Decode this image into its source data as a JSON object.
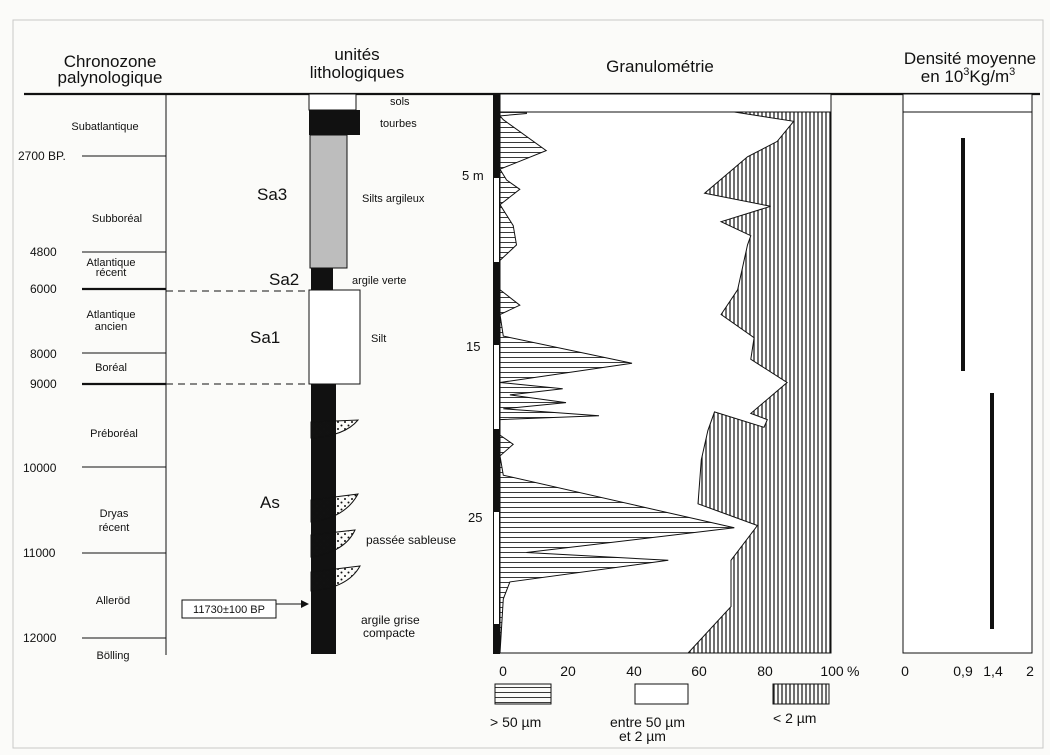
{
  "headers": {
    "chronozone": [
      "Chronozone",
      "palynologique"
    ],
    "lithology": [
      "unités",
      "lithologiques"
    ],
    "granulometry": "Granulométrie",
    "density_line1": "Densité moyenne",
    "density_line2_prefix": "en 10",
    "density_line2_sup1": "3",
    "density_line2_mid": "Kg/m",
    "density_line2_sup2": "3"
  },
  "chronozones": [
    {
      "name": [
        "Subatlantique"
      ]
    },
    {
      "name": [
        "Subboréal"
      ]
    },
    {
      "name": [
        "Atlantique",
        "récent"
      ]
    },
    {
      "name": [
        "Atlantique",
        "ancien"
      ]
    },
    {
      "name": [
        "Boréal"
      ]
    },
    {
      "name": [
        "Préboréal"
      ]
    },
    {
      "name": [
        "Dryas",
        "récent"
      ]
    },
    {
      "name": [
        "Alleröd"
      ]
    },
    {
      "name": [
        "Bölling"
      ]
    }
  ],
  "ages": [
    "2700 BP.",
    "4800",
    "6000",
    "8000",
    "9000",
    "10000",
    "11000",
    "12000"
  ],
  "dating_label": "11730±100 BP",
  "units": [
    "Sa3",
    "Sa2",
    "Sa1",
    "As"
  ],
  "lithology_labels": {
    "sols": "sols",
    "tourbes": "tourbes",
    "silts": "Silts argileux",
    "argile_verte": "argile verte",
    "silt": "Silt",
    "passee": "passée sableuse",
    "argile_grise": [
      "argile grise",
      "compacte"
    ]
  },
  "depth_labels": [
    "5 m",
    "15",
    "25"
  ],
  "x_axis_ticks": [
    "0",
    "20",
    "40",
    "60",
    "80",
    "100"
  ],
  "x_axis_unit": "%",
  "legend": {
    "coarse": "> 50 µm",
    "medium": [
      "entre 50 µm",
      "et 2 µm"
    ],
    "fine": "< 2 µm"
  },
  "density_ticks": [
    "0",
    "0,9",
    "1,4",
    "2"
  ],
  "density_bars": [
    {
      "value": 0.9
    },
    {
      "value": 1.4
    }
  ],
  "granulometry_profiles": {
    "coarse_pct": [
      [
        1.5,
        0
      ],
      [
        8,
        0
      ],
      [
        8,
        2
      ],
      [
        0,
        5
      ],
      [
        1,
        10
      ],
      [
        14,
        50
      ],
      [
        0,
        74
      ],
      [
        2,
        88
      ],
      [
        6,
        100
      ],
      [
        0,
        120
      ],
      [
        4,
        147
      ],
      [
        5,
        172
      ],
      [
        0,
        192
      ],
      [
        0,
        230
      ],
      [
        6,
        250
      ],
      [
        0,
        262
      ],
      [
        1,
        290
      ],
      [
        40,
        325
      ],
      [
        0,
        350
      ],
      [
        19,
        358
      ],
      [
        3,
        366
      ],
      [
        20,
        376
      ],
      [
        1,
        384
      ],
      [
        30,
        393
      ],
      [
        0,
        398
      ],
      [
        0,
        418
      ],
      [
        4,
        430
      ],
      [
        0,
        445
      ],
      [
        1,
        470
      ],
      [
        71,
        538
      ],
      [
        8,
        570
      ],
      [
        51,
        580
      ],
      [
        3,
        608
      ],
      [
        1,
        630
      ]
    ],
    "fine_pct": [
      [
        29,
        0
      ],
      [
        11,
        12
      ],
      [
        16,
        38
      ],
      [
        25,
        58
      ],
      [
        38,
        105
      ],
      [
        18,
        122
      ],
      [
        33,
        142
      ],
      [
        24,
        160
      ],
      [
        25,
        172
      ],
      [
        28,
        230
      ],
      [
        33,
        262
      ],
      [
        23,
        292
      ],
      [
        24,
        320
      ],
      [
        13,
        350
      ],
      [
        24,
        390
      ],
      [
        19,
        398
      ],
      [
        20,
        408
      ],
      [
        35,
        388
      ],
      [
        37,
        412
      ],
      [
        39,
        450
      ],
      [
        40,
        507
      ],
      [
        22,
        535
      ],
      [
        30,
        580
      ],
      [
        30,
        640
      ],
      [
        43,
        700
      ],
      [
        30,
        700
      ],
      [
        0,
        700
      ]
    ]
  }
}
